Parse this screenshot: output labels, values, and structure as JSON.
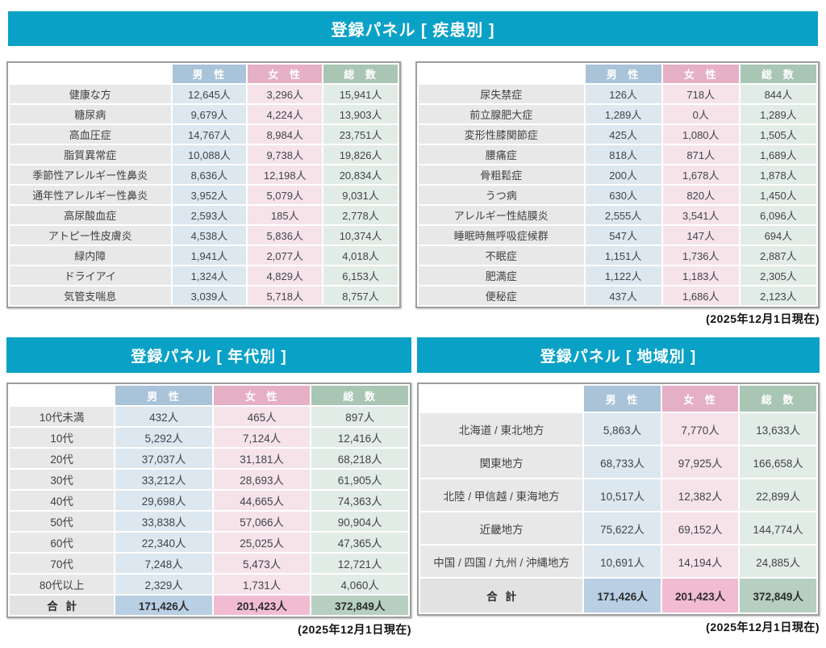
{
  "colors": {
    "accent": "#0aa1c7",
    "maleHeader": "#a9c3d9",
    "femaleHeader": "#e5afc6",
    "totalHeader": "#a9c5b4",
    "maleCell": "#dce7f0",
    "femaleCell": "#f6e3ea",
    "totalCell": "#e2ece6",
    "maleTotal": "#b9cfe4",
    "femaleTotal": "#f1bcd2",
    "totalTotal": "#b6cfc1",
    "labelCell": "#e8e8e8"
  },
  "columns": {
    "male": "男 性",
    "female": "女 性",
    "total": "総 数"
  },
  "date_note": "(2025年12月1日現在)",
  "disease_panel": {
    "title": "登録パネル [ 疾患別 ]",
    "left_rows": [
      {
        "label": "健康な方",
        "male": "12,645人",
        "female": "3,296人",
        "total": "15,941人"
      },
      {
        "label": "糖尿病",
        "male": "9,679人",
        "female": "4,224人",
        "total": "13,903人"
      },
      {
        "label": "高血圧症",
        "male": "14,767人",
        "female": "8,984人",
        "total": "23,751人"
      },
      {
        "label": "脂質異常症",
        "male": "10,088人",
        "female": "9,738人",
        "total": "19,826人"
      },
      {
        "label": "季節性アレルギー性鼻炎",
        "male": "8,636人",
        "female": "12,198人",
        "total": "20,834人"
      },
      {
        "label": "通年性アレルギー性鼻炎",
        "male": "3,952人",
        "female": "5,079人",
        "total": "9,031人"
      },
      {
        "label": "高尿酸血症",
        "male": "2,593人",
        "female": "185人",
        "total": "2,778人"
      },
      {
        "label": "アトピー性皮膚炎",
        "male": "4,538人",
        "female": "5,836人",
        "total": "10,374人"
      },
      {
        "label": "緑内障",
        "male": "1,941人",
        "female": "2,077人",
        "total": "4,018人"
      },
      {
        "label": "ドライアイ",
        "male": "1,324人",
        "female": "4,829人",
        "total": "6,153人"
      },
      {
        "label": "気管支喘息",
        "male": "3,039人",
        "female": "5,718人",
        "total": "8,757人"
      }
    ],
    "right_rows": [
      {
        "label": "尿失禁症",
        "male": "126人",
        "female": "718人",
        "total": "844人"
      },
      {
        "label": "前立腺肥大症",
        "male": "1,289人",
        "female": "0人",
        "total": "1,289人"
      },
      {
        "label": "変形性膝関節症",
        "male": "425人",
        "female": "1,080人",
        "total": "1,505人"
      },
      {
        "label": "腰痛症",
        "male": "818人",
        "female": "871人",
        "total": "1,689人"
      },
      {
        "label": "骨粗鬆症",
        "male": "200人",
        "female": "1,678人",
        "total": "1,878人"
      },
      {
        "label": "うつ病",
        "male": "630人",
        "female": "820人",
        "total": "1,450人"
      },
      {
        "label": "アレルギー性結膜炎",
        "male": "2,555人",
        "female": "3,541人",
        "total": "6,096人"
      },
      {
        "label": "睡眠時無呼吸症候群",
        "male": "547人",
        "female": "147人",
        "total": "694人"
      },
      {
        "label": "不眠症",
        "male": "1,151人",
        "female": "1,736人",
        "total": "2,887人"
      },
      {
        "label": "肥満症",
        "male": "1,122人",
        "female": "1,183人",
        "total": "2,305人"
      },
      {
        "label": "便秘症",
        "male": "437人",
        "female": "1,686人",
        "total": "2,123人"
      }
    ]
  },
  "age_panel": {
    "title": "登録パネル [ 年代別 ]",
    "rows": [
      {
        "label": "10代未満",
        "male": "432人",
        "female": "465人",
        "total": "897人"
      },
      {
        "label": "10代",
        "male": "5,292人",
        "female": "7,124人",
        "total": "12,416人"
      },
      {
        "label": "20代",
        "male": "37,037人",
        "female": "31,181人",
        "total": "68,218人"
      },
      {
        "label": "30代",
        "male": "33,212人",
        "female": "28,693人",
        "total": "61,905人"
      },
      {
        "label": "40代",
        "male": "29,698人",
        "female": "44,665人",
        "total": "74,363人"
      },
      {
        "label": "50代",
        "male": "33,838人",
        "female": "57,066人",
        "total": "90,904人"
      },
      {
        "label": "60代",
        "male": "22,340人",
        "female": "25,025人",
        "total": "47,365人"
      },
      {
        "label": "70代",
        "male": "7,248人",
        "female": "5,473人",
        "total": "12,721人"
      },
      {
        "label": "80代以上",
        "male": "2,329人",
        "female": "1,731人",
        "total": "4,060人"
      }
    ],
    "total_row": {
      "label": "合 計",
      "male": "171,426人",
      "female": "201,423人",
      "total": "372,849人"
    }
  },
  "region_panel": {
    "title": "登録パネル [ 地域別 ]",
    "rows": [
      {
        "label": "北海道 / 東北地方",
        "male": "5,863人",
        "female": "7,770人",
        "total": "13,633人"
      },
      {
        "label": "関東地方",
        "male": "68,733人",
        "female": "97,925人",
        "total": "166,658人"
      },
      {
        "label": "北陸 / 甲信越 / 東海地方",
        "male": "10,517人",
        "female": "12,382人",
        "total": "22,899人"
      },
      {
        "label": "近畿地方",
        "male": "75,622人",
        "female": "69,152人",
        "total": "144,774人"
      },
      {
        "label": "中国 / 四国 / 九州 / 沖縄地方",
        "male": "10,691人",
        "female": "14,194人",
        "total": "24,885人"
      }
    ],
    "total_row": {
      "label": "合 計",
      "male": "171,426人",
      "female": "201,423人",
      "total": "372,849人"
    }
  }
}
